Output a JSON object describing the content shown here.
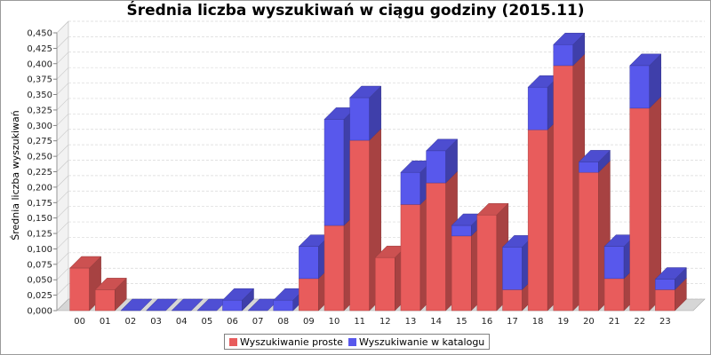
{
  "chart_data": {
    "type": "bar",
    "stacked": true,
    "style": "3d",
    "title": "Średnia liczba wyszukiwań w ciągu godziny (2015.11)",
    "xlabel": "",
    "ylabel": "Średnia liczba wyszukiwań",
    "ylim": [
      0,
      0.45
    ],
    "ytick_step": 0.025,
    "ytick_decimals": 3,
    "grid": true,
    "legend_position": "bottom",
    "categories": [
      "00",
      "01",
      "02",
      "03",
      "04",
      "05",
      "06",
      "07",
      "08",
      "09",
      "10",
      "11",
      "12",
      "13",
      "14",
      "15",
      "16",
      "17",
      "18",
      "19",
      "20",
      "21",
      "22",
      "23"
    ],
    "series": [
      {
        "name": "Wyszukiwanie proste",
        "color": "#e85c5c",
        "values": [
          0.069,
          0.034,
          0.0,
          0.0,
          0.0,
          0.0,
          0.0,
          0.0,
          0.0,
          0.052,
          0.138,
          0.276,
          0.086,
          0.172,
          0.207,
          0.121,
          0.155,
          0.034,
          0.293,
          0.397,
          0.224,
          0.052,
          0.328,
          0.034
        ]
      },
      {
        "name": "Wyszukiwanie w katalogu",
        "color": "#5858ec",
        "values": [
          0.0,
          0.0,
          0.0,
          0.0,
          0.0,
          0.0,
          0.017,
          0.0,
          0.017,
          0.052,
          0.172,
          0.069,
          0.0,
          0.052,
          0.052,
          0.017,
          0.0,
          0.069,
          0.069,
          0.034,
          0.017,
          0.052,
          0.069,
          0.017
        ]
      }
    ]
  }
}
